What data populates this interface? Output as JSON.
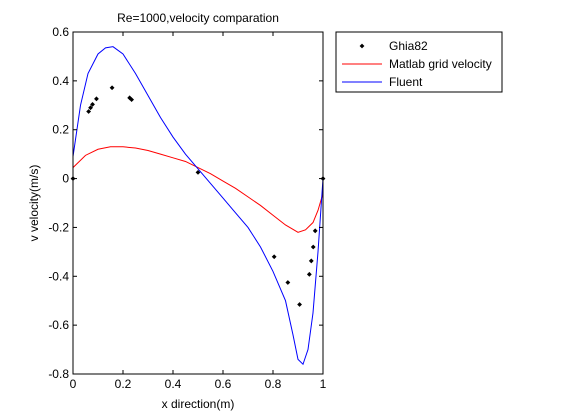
{
  "chart_data": {
    "type": "line",
    "title": "Re=1000,velocity comparation",
    "xlabel": "x direction(m)",
    "ylabel": "v velocity(m/s)",
    "xlim": [
      0,
      1
    ],
    "ylim": [
      -0.8,
      0.6
    ],
    "xticks": [
      "0",
      "0.2",
      "0.4",
      "0.6",
      "0.8",
      "1"
    ],
    "yticks": [
      "0.6",
      "0.4",
      "0.2",
      "0",
      "-0.2",
      "-0.4",
      "-0.6",
      "-0.8"
    ],
    "grid": false,
    "legend_position": "outside-right-top",
    "series": [
      {
        "name": "Ghia82",
        "kind": "markers",
        "color": "#000000",
        "x": [
          0.0,
          0.0625,
          0.0703,
          0.0781,
          0.0938,
          0.1563,
          0.2266,
          0.2344,
          0.5,
          0.8047,
          0.8594,
          0.9063,
          0.9453,
          0.9531,
          0.9609,
          0.9688,
          1.0
        ],
        "y": [
          0.0,
          0.2745,
          0.2901,
          0.3035,
          0.3264,
          0.3717,
          0.3305,
          0.3233,
          0.0255,
          -0.3201,
          -0.4253,
          -0.5155,
          -0.392,
          -0.3371,
          -0.2802,
          -0.2139,
          0.0
        ]
      },
      {
        "name": "Matlab grid velocity",
        "kind": "line",
        "color": "#ff0000",
        "x": [
          0.0,
          0.05,
          0.1,
          0.15,
          0.2,
          0.25,
          0.3,
          0.35,
          0.4,
          0.45,
          0.5,
          0.55,
          0.6,
          0.65,
          0.7,
          0.75,
          0.8,
          0.85,
          0.9,
          0.93,
          0.96,
          0.98,
          1.0
        ],
        "y": [
          0.045,
          0.095,
          0.12,
          0.13,
          0.13,
          0.125,
          0.115,
          0.1,
          0.085,
          0.07,
          0.045,
          0.02,
          -0.01,
          -0.04,
          -0.075,
          -0.11,
          -0.15,
          -0.19,
          -0.22,
          -0.21,
          -0.18,
          -0.13,
          -0.06
        ]
      },
      {
        "name": "Fluent",
        "kind": "line",
        "color": "#0000ff",
        "x": [
          0.0,
          0.03,
          0.06,
          0.1,
          0.13,
          0.16,
          0.2,
          0.25,
          0.3,
          0.35,
          0.4,
          0.45,
          0.5,
          0.55,
          0.6,
          0.65,
          0.7,
          0.75,
          0.8,
          0.85,
          0.88,
          0.9,
          0.92,
          0.94,
          0.96,
          0.98,
          1.0
        ],
        "y": [
          0.09,
          0.3,
          0.43,
          0.51,
          0.535,
          0.54,
          0.51,
          0.43,
          0.34,
          0.25,
          0.17,
          0.1,
          0.04,
          -0.02,
          -0.08,
          -0.14,
          -0.2,
          -0.28,
          -0.38,
          -0.5,
          -0.64,
          -0.74,
          -0.76,
          -0.7,
          -0.55,
          -0.3,
          0.0
        ]
      }
    ]
  }
}
